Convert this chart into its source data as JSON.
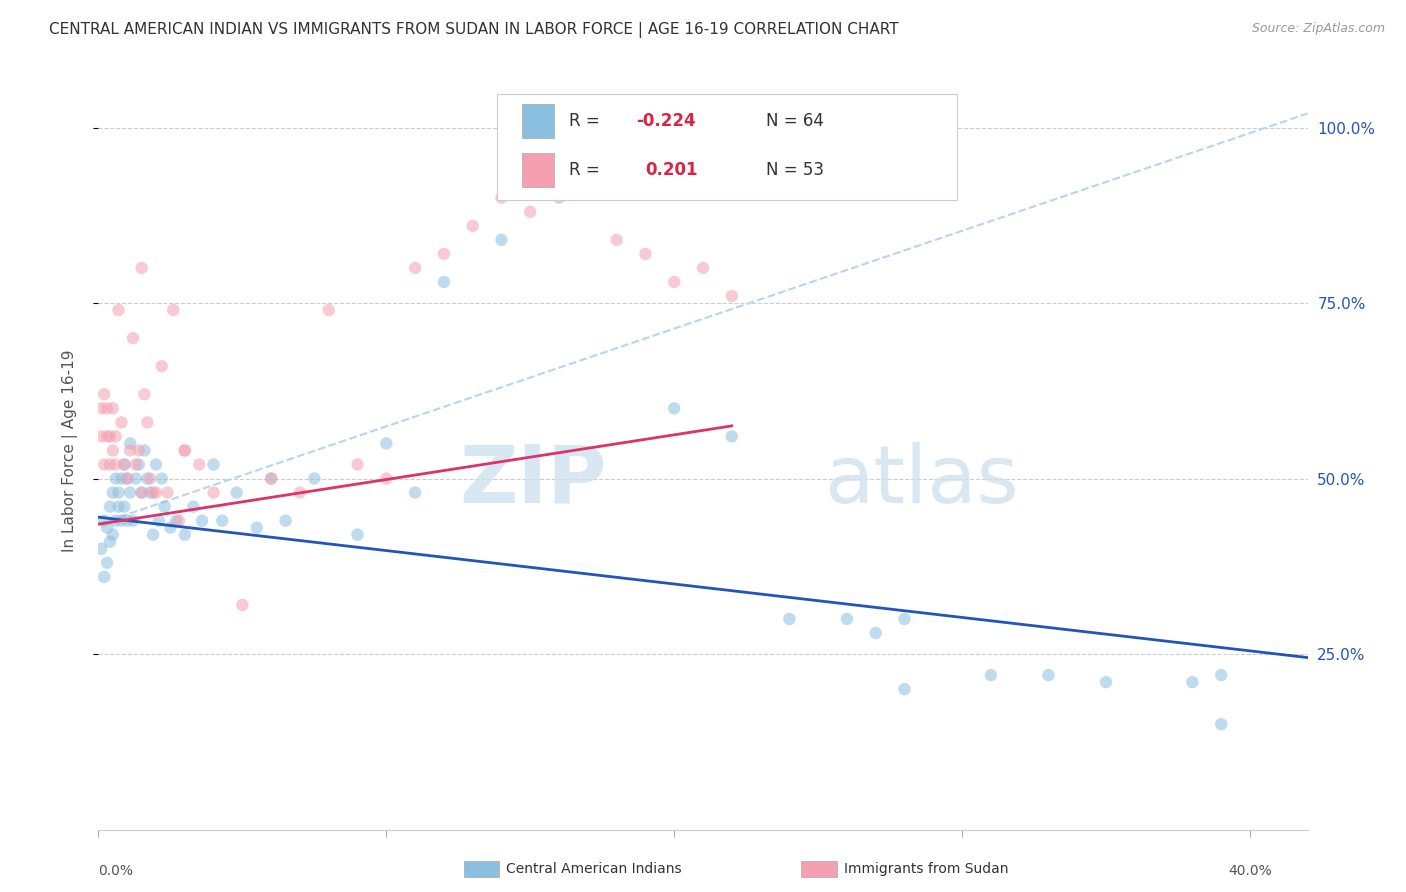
{
  "title": "CENTRAL AMERICAN INDIAN VS IMMIGRANTS FROM SUDAN IN LABOR FORCE | AGE 16-19 CORRELATION CHART",
  "source": "Source: ZipAtlas.com",
  "ylabel": "In Labor Force | Age 16-19",
  "xlim": [
    0.0,
    0.42
  ],
  "ylim": [
    0.0,
    1.08
  ],
  "ytick_vals": [
    0.25,
    0.5,
    0.75,
    1.0
  ],
  "ytick_labs": [
    "25.0%",
    "50.0%",
    "75.0%",
    "100.0%"
  ],
  "xtick_vals": [
    0.0,
    0.1,
    0.2,
    0.3,
    0.4
  ],
  "blue_scatter_x": [
    0.001,
    0.002,
    0.002,
    0.003,
    0.003,
    0.004,
    0.004,
    0.005,
    0.005,
    0.006,
    0.006,
    0.007,
    0.007,
    0.008,
    0.008,
    0.009,
    0.009,
    0.01,
    0.01,
    0.011,
    0.011,
    0.012,
    0.013,
    0.014,
    0.015,
    0.016,
    0.017,
    0.018,
    0.019,
    0.02,
    0.021,
    0.022,
    0.023,
    0.025,
    0.027,
    0.03,
    0.033,
    0.036,
    0.04,
    0.043,
    0.048,
    0.055,
    0.06,
    0.065,
    0.075,
    0.09,
    0.1,
    0.11,
    0.12,
    0.14,
    0.16,
    0.2,
    0.22,
    0.24,
    0.26,
    0.28,
    0.31,
    0.33,
    0.35,
    0.38,
    0.39,
    0.27,
    0.39,
    0.28
  ],
  "blue_scatter_y": [
    0.4,
    0.36,
    0.44,
    0.38,
    0.43,
    0.41,
    0.46,
    0.42,
    0.48,
    0.44,
    0.5,
    0.46,
    0.48,
    0.44,
    0.5,
    0.46,
    0.52,
    0.44,
    0.5,
    0.48,
    0.55,
    0.44,
    0.5,
    0.52,
    0.48,
    0.54,
    0.5,
    0.48,
    0.42,
    0.52,
    0.44,
    0.5,
    0.46,
    0.43,
    0.44,
    0.42,
    0.46,
    0.44,
    0.52,
    0.44,
    0.48,
    0.43,
    0.5,
    0.44,
    0.5,
    0.42,
    0.55,
    0.48,
    0.78,
    0.84,
    0.9,
    0.6,
    0.56,
    0.3,
    0.3,
    0.3,
    0.22,
    0.22,
    0.21,
    0.21,
    0.22,
    0.28,
    0.15,
    0.2
  ],
  "pink_scatter_x": [
    0.001,
    0.001,
    0.002,
    0.002,
    0.003,
    0.003,
    0.004,
    0.004,
    0.005,
    0.005,
    0.006,
    0.006,
    0.007,
    0.008,
    0.009,
    0.01,
    0.011,
    0.012,
    0.013,
    0.014,
    0.015,
    0.016,
    0.017,
    0.018,
    0.019,
    0.02,
    0.022,
    0.024,
    0.026,
    0.028,
    0.03,
    0.035,
    0.04,
    0.05,
    0.06,
    0.07,
    0.08,
    0.09,
    0.1,
    0.11,
    0.12,
    0.13,
    0.14,
    0.15,
    0.16,
    0.17,
    0.18,
    0.19,
    0.2,
    0.21,
    0.22,
    0.015,
    0.03
  ],
  "pink_scatter_y": [
    0.6,
    0.56,
    0.52,
    0.62,
    0.56,
    0.6,
    0.52,
    0.56,
    0.54,
    0.6,
    0.52,
    0.56,
    0.74,
    0.58,
    0.52,
    0.5,
    0.54,
    0.7,
    0.52,
    0.54,
    0.48,
    0.62,
    0.58,
    0.5,
    0.48,
    0.48,
    0.66,
    0.48,
    0.74,
    0.44,
    0.54,
    0.52,
    0.48,
    0.32,
    0.5,
    0.48,
    0.74,
    0.52,
    0.5,
    0.8,
    0.82,
    0.86,
    0.9,
    0.88,
    0.92,
    0.94,
    0.84,
    0.82,
    0.78,
    0.8,
    0.76,
    0.8,
    0.54
  ],
  "blue_line_x": [
    0.0,
    0.42
  ],
  "blue_line_y": [
    0.445,
    0.245
  ],
  "pink_line_x": [
    0.0,
    0.22
  ],
  "pink_line_y": [
    0.435,
    0.575
  ],
  "dashed_line_x": [
    0.0,
    0.42
  ],
  "dashed_line_y": [
    0.435,
    1.02
  ],
  "watermark_zip": "ZIP",
  "watermark_atlas": "atlas",
  "scatter_size": 80,
  "scatter_alpha": 0.55,
  "blue_color": "#8bbfe0",
  "pink_color": "#f4a0b0",
  "blue_line_color": "#2255bb",
  "pink_line_color": "#dd3366",
  "dashed_color": "#b8d4ee",
  "legend_blue_label_r": "R = ",
  "legend_blue_r_val": "-0.224",
  "legend_blue_n": "N = 64",
  "legend_pink_label_r": "R =  ",
  "legend_pink_r_val": "0.201",
  "legend_pink_n": "N = 53",
  "bottom_label1": "Central American Indians",
  "bottom_label2": "Immigrants from Sudan"
}
